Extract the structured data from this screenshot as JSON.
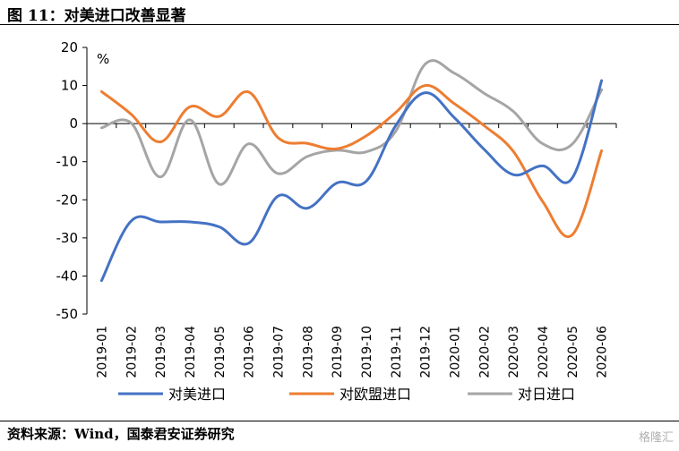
{
  "figure_title": "图 11：对美进口改善显著",
  "source_text": "资料来源：Wind，国泰君安证券研究",
  "watermark": "格隆汇",
  "chart_data": {
    "type": "line",
    "title": "",
    "xlabel": "",
    "ylabel": "",
    "unit_label": "%",
    "ylim": [
      -50,
      20
    ],
    "yticks": [
      20,
      10,
      0,
      -10,
      -20,
      -30,
      -40,
      -50
    ],
    "grid": false,
    "legend_position": "bottom",
    "categories": [
      "2019-01",
      "2019-02",
      "2019-03",
      "2019-04",
      "2019-05",
      "2019-06",
      "2019-07",
      "2019-08",
      "2019-09",
      "2019-10",
      "2019-11",
      "2019-12",
      "2020-01",
      "2020-02",
      "2020-03",
      "2020-04",
      "2020-05",
      "2020-06"
    ],
    "series": [
      {
        "name": "对美进口",
        "color": "#4472C4",
        "values": [
          -41.2,
          -25.6,
          -25.8,
          -25.8,
          -27.1,
          -31.4,
          -19.0,
          -22.2,
          -15.6,
          -15.1,
          -0.5,
          8.1,
          1.5,
          -6.7,
          -13.4,
          -11.1,
          -14.3,
          11.3
        ]
      },
      {
        "name": "对欧盟进口",
        "color": "#ED7D31",
        "values": [
          8.4,
          2.5,
          -4.8,
          4.4,
          1.9,
          8.3,
          -3.7,
          -5.2,
          -6.6,
          -3.2,
          2.9,
          10.0,
          5.2,
          -0.5,
          -7.3,
          -20.5,
          -29.2,
          -7.1
        ]
      },
      {
        "name": "对日进口",
        "color": "#A5A5A5",
        "values": [
          -1.1,
          0.2,
          -14.0,
          1.0,
          -15.9,
          -5.3,
          -13.1,
          -8.6,
          -7.0,
          -7.4,
          -2.0,
          15.6,
          13.2,
          8.0,
          3.2,
          -5.3,
          -5.4,
          8.9
        ]
      }
    ]
  }
}
